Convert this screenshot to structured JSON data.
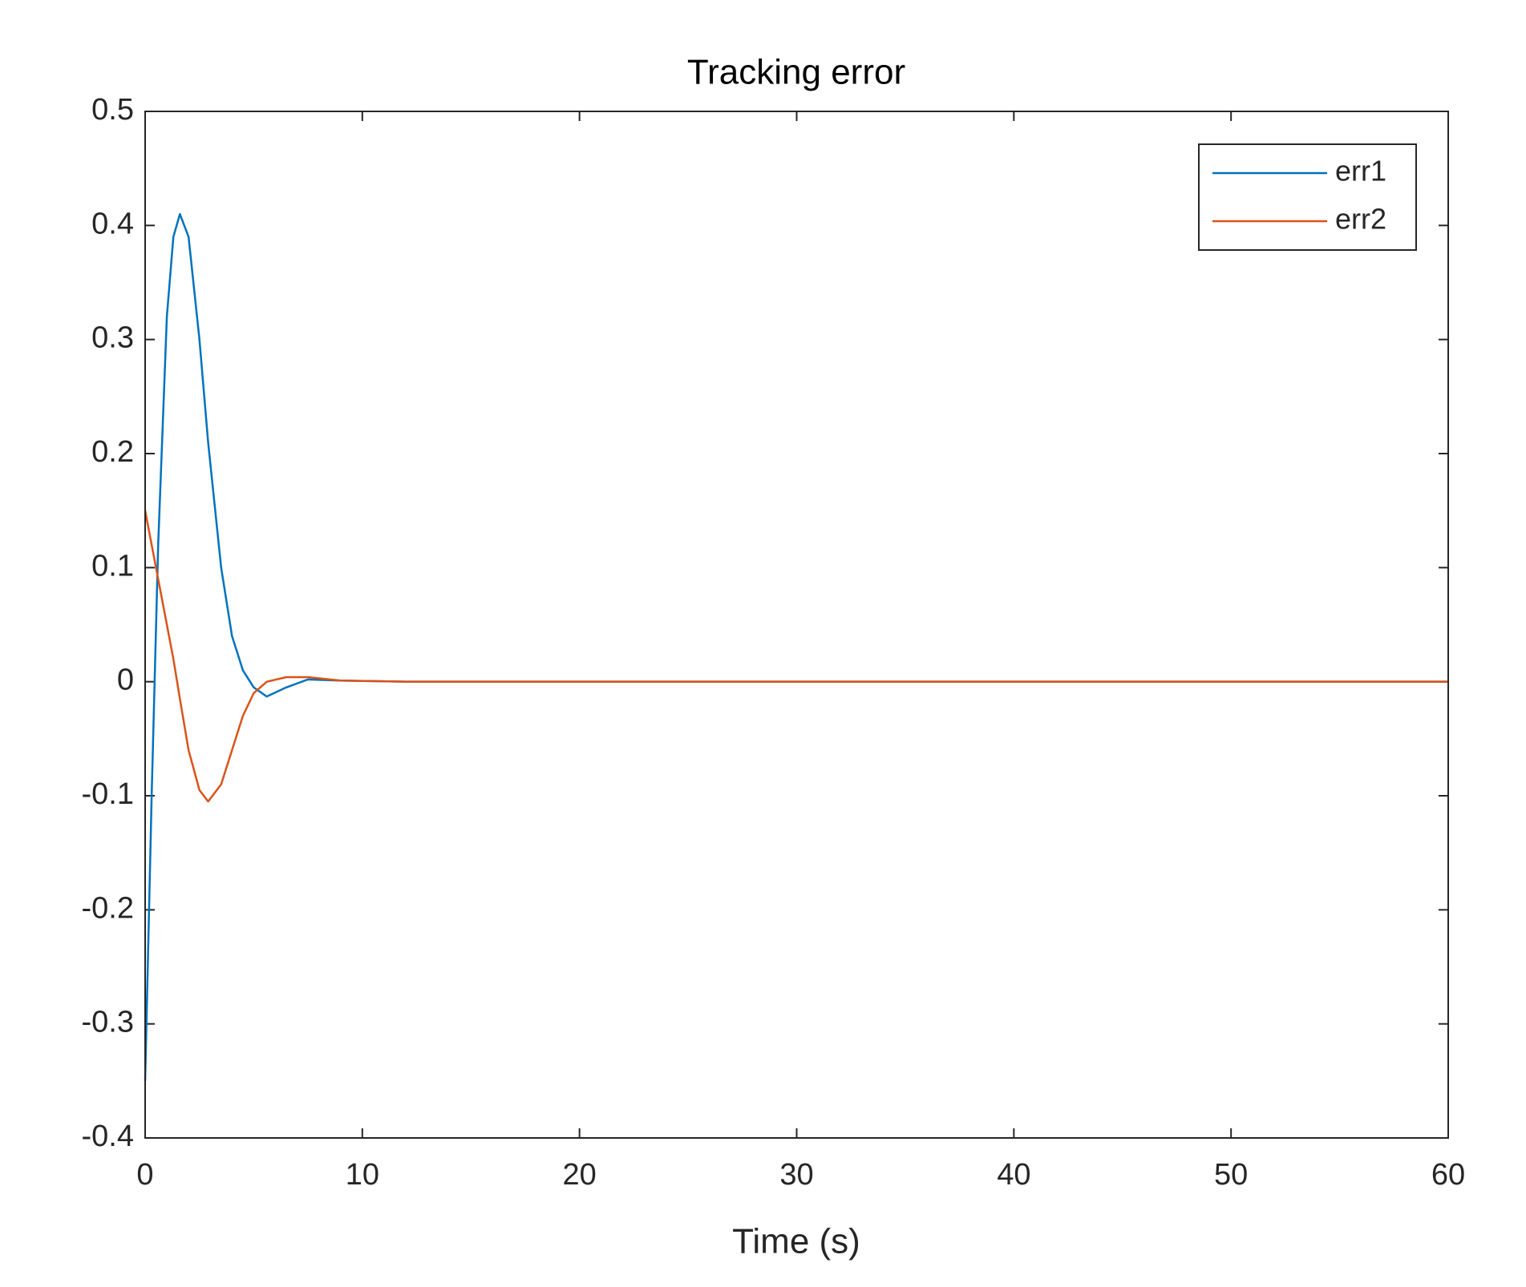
{
  "chart_data": {
    "type": "line",
    "title": "Tracking error",
    "x_label": "Time (s)",
    "x": [
      0,
      0.3,
      0.6,
      1,
      1.3,
      1.6,
      2,
      2.5,
      2.9,
      3.5,
      4,
      4.5,
      5,
      5.6,
      6.5,
      7.5,
      9,
      12,
      60
    ],
    "series": [
      {
        "name": "err1",
        "color": "#0072BD",
        "values": [
          -0.35,
          -0.1,
          0.12,
          0.32,
          0.39,
          0.41,
          0.39,
          0.3,
          0.21,
          0.1,
          0.04,
          0.01,
          -0.005,
          -0.013,
          -0.005,
          0.002,
          0.001,
          0,
          0
        ]
      },
      {
        "name": "err2",
        "color": "#D95319",
        "values": [
          0.15,
          0.12,
          0.09,
          0.05,
          0.02,
          -0.015,
          -0.06,
          -0.095,
          -0.105,
          -0.09,
          -0.06,
          -0.03,
          -0.01,
          0,
          0.004,
          0.004,
          0.001,
          0,
          0
        ]
      }
    ],
    "xlim": [
      0,
      60
    ],
    "xticks": [
      0,
      10,
      20,
      30,
      40,
      50,
      60
    ],
    "ylim": [
      -0.4,
      0.5
    ],
    "yticks": [
      -0.4,
      -0.3,
      -0.2,
      -0.1,
      0,
      0.1,
      0.2,
      0.3,
      0.4,
      0.5
    ],
    "grid": false,
    "legend_position": "northeast"
  }
}
